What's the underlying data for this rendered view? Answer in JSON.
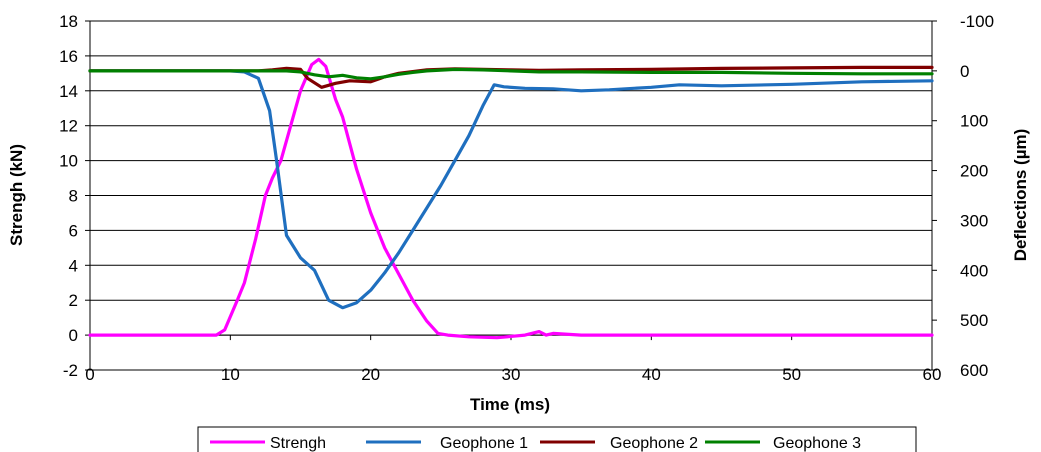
{
  "chart_data": {
    "type": "line",
    "title": "",
    "xlabel": "Time (ms)",
    "ylabel": "Strengh (kN)",
    "y2label": "Deflections (µm)",
    "xlim": [
      0,
      60
    ],
    "ylim": [
      -2,
      18
    ],
    "y2lim": [
      600,
      -100
    ],
    "x_ticks": [
      0,
      10,
      20,
      30,
      40,
      50,
      60
    ],
    "y_ticks": [
      -2,
      0,
      2,
      4,
      6,
      8,
      10,
      12,
      14,
      16,
      18
    ],
    "y2_ticks": [
      -100,
      0,
      100,
      200,
      300,
      400,
      500,
      600
    ],
    "grid": "horizontal",
    "legend_position": "bottom",
    "series": [
      {
        "name": "Strengh",
        "axis": "left",
        "color": "#ff00ff",
        "points": [
          [
            0,
            0
          ],
          [
            5,
            0
          ],
          [
            9,
            0
          ],
          [
            9.6,
            0.3
          ],
          [
            10.5,
            2
          ],
          [
            11,
            3
          ],
          [
            11.8,
            5.5
          ],
          [
            12.5,
            8
          ],
          [
            13,
            9
          ],
          [
            13.6,
            10
          ],
          [
            14.3,
            12
          ],
          [
            15,
            14
          ],
          [
            15.8,
            15.5
          ],
          [
            16.3,
            15.8
          ],
          [
            16.8,
            15.4
          ],
          [
            17.5,
            13.5
          ],
          [
            18,
            12.5
          ],
          [
            18.5,
            11
          ],
          [
            19,
            9.5
          ],
          [
            20,
            7
          ],
          [
            21,
            5
          ],
          [
            22,
            3.5
          ],
          [
            23,
            2
          ],
          [
            24,
            0.8
          ],
          [
            24.8,
            0.1
          ],
          [
            25.5,
            0
          ],
          [
            27,
            -0.1
          ],
          [
            29,
            -0.15
          ],
          [
            31,
            0
          ],
          [
            32,
            0.2
          ],
          [
            32.5,
            0
          ],
          [
            33,
            0.1
          ],
          [
            35,
            0
          ],
          [
            40,
            0
          ],
          [
            45,
            0
          ],
          [
            50,
            0
          ],
          [
            55,
            0
          ],
          [
            60,
            0
          ]
        ]
      },
      {
        "name": "Geophone 1",
        "axis": "right",
        "color": "#1f6fbf",
        "points": [
          [
            0,
            0
          ],
          [
            10,
            0
          ],
          [
            11,
            2
          ],
          [
            12,
            15
          ],
          [
            12.8,
            80
          ],
          [
            13.3,
            180
          ],
          [
            14,
            330
          ],
          [
            15,
            375
          ],
          [
            16,
            400
          ],
          [
            17,
            460
          ],
          [
            18,
            475
          ],
          [
            19,
            465
          ],
          [
            20,
            440
          ],
          [
            21,
            405
          ],
          [
            22,
            365
          ],
          [
            23,
            320
          ],
          [
            24,
            275
          ],
          [
            25,
            230
          ],
          [
            26,
            180
          ],
          [
            27,
            130
          ],
          [
            28,
            70
          ],
          [
            28.8,
            28
          ],
          [
            29.5,
            32
          ],
          [
            31,
            35
          ],
          [
            33,
            36
          ],
          [
            35,
            40
          ],
          [
            37,
            38
          ],
          [
            40,
            33
          ],
          [
            42,
            28
          ],
          [
            45,
            30
          ],
          [
            50,
            27
          ],
          [
            55,
            22
          ],
          [
            60,
            20
          ]
        ]
      },
      {
        "name": "Geophone 2",
        "axis": "right",
        "color": "#800000",
        "points": [
          [
            0,
            0
          ],
          [
            10,
            0
          ],
          [
            12,
            0
          ],
          [
            13,
            -2
          ],
          [
            14,
            -5
          ],
          [
            15,
            -3
          ],
          [
            15.5,
            15
          ],
          [
            16.5,
            33
          ],
          [
            17.5,
            25
          ],
          [
            18.5,
            20
          ],
          [
            20,
            22
          ],
          [
            21,
            12
          ],
          [
            22,
            5
          ],
          [
            24,
            -2
          ],
          [
            26,
            -4
          ],
          [
            28,
            -3
          ],
          [
            30,
            -2
          ],
          [
            32,
            -1
          ],
          [
            35,
            -2
          ],
          [
            40,
            -3
          ],
          [
            45,
            -5
          ],
          [
            50,
            -6
          ],
          [
            55,
            -7
          ],
          [
            60,
            -7
          ]
        ]
      },
      {
        "name": "Geophone 3",
        "axis": "right",
        "color": "#008000",
        "points": [
          [
            0,
            0
          ],
          [
            10,
            0
          ],
          [
            12,
            0
          ],
          [
            14,
            0
          ],
          [
            15,
            2
          ],
          [
            16,
            8
          ],
          [
            17,
            12
          ],
          [
            18,
            9
          ],
          [
            19,
            14
          ],
          [
            20,
            16
          ],
          [
            21,
            12
          ],
          [
            22,
            7
          ],
          [
            23,
            3
          ],
          [
            24,
            0
          ],
          [
            26,
            -3
          ],
          [
            28,
            -2
          ],
          [
            30,
            0
          ],
          [
            32,
            2
          ],
          [
            35,
            2
          ],
          [
            40,
            3
          ],
          [
            45,
            3
          ],
          [
            50,
            5
          ],
          [
            55,
            6
          ],
          [
            60,
            6
          ]
        ]
      }
    ]
  }
}
